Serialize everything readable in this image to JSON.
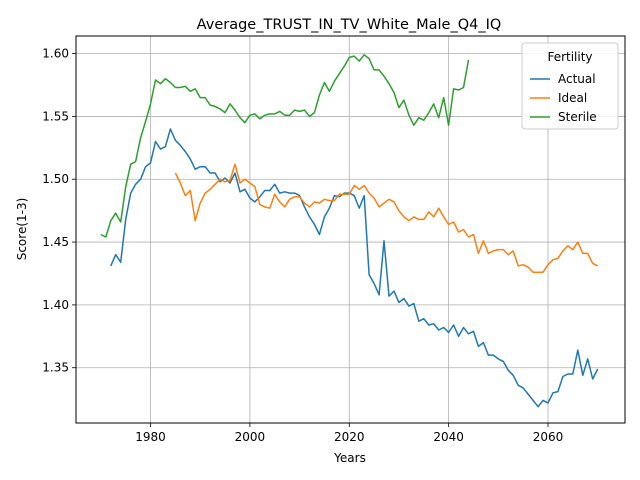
{
  "chart_data": {
    "type": "line",
    "title": "Average_TRUST_IN_TV_White_Male_Q4_IQ",
    "xlabel": "Years",
    "ylabel": "Score(1-3)",
    "xlim": [
      1965.0,
      2075.5
    ],
    "ylim": [
      1.306,
      1.614
    ],
    "xticks": [
      1980,
      2000,
      2020,
      2040,
      2060
    ],
    "xtick_labels": [
      "1980",
      "2000",
      "2020",
      "2040",
      "2060"
    ],
    "yticks": [
      1.35,
      1.4,
      1.45,
      1.5,
      1.55,
      1.6
    ],
    "ytick_labels": [
      "1.35",
      "1.40",
      "1.45",
      "1.50",
      "1.55",
      "1.60"
    ],
    "grid": true,
    "legend": {
      "title": "Fertility",
      "position": "top-right"
    },
    "series": [
      {
        "name": "Actual",
        "color": "#1f77b4",
        "x": [
          1972,
          1973,
          1974,
          1975,
          1976,
          1977,
          1978,
          1979,
          1980,
          1981,
          1982,
          1983,
          1984,
          1985,
          1986,
          1987,
          1988,
          1989,
          1990,
          1991,
          1992,
          1993,
          1994,
          1995,
          1996,
          1997,
          1998,
          1999,
          2000,
          2001,
          2002,
          2003,
          2004,
          2005,
          2006,
          2007,
          2008,
          2009,
          2010,
          2011,
          2012,
          2013,
          2014,
          2015,
          2016,
          2017,
          2018,
          2019,
          2020,
          2021,
          2022,
          2023,
          2024,
          2025,
          2026,
          2027,
          2028,
          2029,
          2030,
          2031,
          2032,
          2033,
          2034,
          2035,
          2036,
          2037,
          2038,
          2039,
          2040,
          2041,
          2042,
          2043,
          2044,
          2045,
          2046,
          2047,
          2048,
          2049,
          2050,
          2051,
          2052,
          2053,
          2054,
          2055,
          2056,
          2057,
          2058,
          2059,
          2060,
          2061,
          2062,
          2063,
          2064,
          2065,
          2066,
          2067,
          2068,
          2069,
          2070
        ],
        "values": [
          1.431,
          1.44,
          1.434,
          1.468,
          1.489,
          1.496,
          1.5,
          1.51,
          1.513,
          1.53,
          1.524,
          1.526,
          1.54,
          1.531,
          1.527,
          1.522,
          1.516,
          1.508,
          1.51,
          1.51,
          1.505,
          1.505,
          1.498,
          1.501,
          1.497,
          1.505,
          1.49,
          1.492,
          1.485,
          1.482,
          1.486,
          1.491,
          1.491,
          1.496,
          1.489,
          1.49,
          1.489,
          1.489,
          1.487,
          1.478,
          1.47,
          1.464,
          1.456,
          1.47,
          1.477,
          1.487,
          1.486,
          1.489,
          1.489,
          1.487,
          1.477,
          1.487,
          1.424,
          1.417,
          1.408,
          1.451,
          1.407,
          1.411,
          1.402,
          1.405,
          1.399,
          1.401,
          1.387,
          1.389,
          1.384,
          1.385,
          1.38,
          1.382,
          1.378,
          1.384,
          1.375,
          1.382,
          1.377,
          1.379,
          1.367,
          1.37,
          1.36,
          1.36,
          1.357,
          1.355,
          1.348,
          1.344,
          1.336,
          1.334,
          1.329,
          1.324,
          1.319,
          1.324,
          1.322,
          1.33,
          1.331,
          1.343,
          1.345,
          1.345,
          1.364,
          1.344,
          1.357,
          1.341,
          1.349
        ]
      },
      {
        "name": "Ideal",
        "color": "#ff7f0e",
        "x": [
          1985,
          1986,
          1987,
          1988,
          1989,
          1990,
          1991,
          1992,
          1993,
          1994,
          1995,
          1996,
          1997,
          1998,
          1999,
          2000,
          2001,
          2002,
          2003,
          2004,
          2005,
          2006,
          2007,
          2008,
          2009,
          2010,
          2011,
          2012,
          2013,
          2014,
          2015,
          2016,
          2017,
          2018,
          2019,
          2020,
          2021,
          2022,
          2023,
          2024,
          2025,
          2026,
          2027,
          2028,
          2029,
          2030,
          2031,
          2032,
          2033,
          2034,
          2035,
          2036,
          2037,
          2038,
          2039,
          2040,
          2041,
          2042,
          2043,
          2044,
          2045,
          2046,
          2047,
          2048,
          2049,
          2050,
          2051,
          2052,
          2053,
          2054,
          2055,
          2056,
          2057,
          2058,
          2059,
          2060,
          2061,
          2062,
          2063,
          2064,
          2065,
          2066,
          2067,
          2068,
          2069,
          2070
        ],
        "values": [
          1.505,
          1.497,
          1.487,
          1.491,
          1.467,
          1.481,
          1.489,
          1.492,
          1.496,
          1.5,
          1.498,
          1.499,
          1.512,
          1.497,
          1.5,
          1.497,
          1.494,
          1.48,
          1.478,
          1.477,
          1.488,
          1.482,
          1.478,
          1.484,
          1.486,
          1.486,
          1.481,
          1.478,
          1.482,
          1.481,
          1.484,
          1.483,
          1.483,
          1.488,
          1.488,
          1.488,
          1.495,
          1.492,
          1.495,
          1.489,
          1.485,
          1.478,
          1.481,
          1.484,
          1.482,
          1.475,
          1.47,
          1.467,
          1.47,
          1.468,
          1.468,
          1.474,
          1.47,
          1.477,
          1.47,
          1.464,
          1.466,
          1.458,
          1.46,
          1.454,
          1.456,
          1.441,
          1.451,
          1.441,
          1.443,
          1.444,
          1.444,
          1.44,
          1.443,
          1.431,
          1.432,
          1.43,
          1.426,
          1.426,
          1.426,
          1.432,
          1.436,
          1.437,
          1.443,
          1.447,
          1.444,
          1.45,
          1.441,
          1.441,
          1.433,
          1.431
        ]
      },
      {
        "name": "Sterile",
        "color": "#2ca02c",
        "x": [
          1970,
          1971,
          1972,
          1973,
          1974,
          1975,
          1976,
          1977,
          1978,
          1979,
          1980,
          1981,
          1982,
          1983,
          1984,
          1985,
          1986,
          1987,
          1988,
          1989,
          1990,
          1991,
          1992,
          1993,
          1994,
          1995,
          1996,
          1997,
          1998,
          1999,
          2000,
          2001,
          2002,
          2003,
          2004,
          2005,
          2006,
          2007,
          2008,
          2009,
          2010,
          2011,
          2012,
          2013,
          2014,
          2015,
          2016,
          2017,
          2018,
          2019,
          2020,
          2021,
          2022,
          2023,
          2024,
          2025,
          2026,
          2027,
          2028,
          2029,
          2030,
          2031,
          2032,
          2033,
          2034,
          2035,
          2036,
          2037,
          2038,
          2039,
          2040,
          2041,
          2042,
          2043,
          2044
        ],
        "values": [
          1.456,
          1.454,
          1.467,
          1.473,
          1.466,
          1.494,
          1.512,
          1.514,
          1.533,
          1.546,
          1.56,
          1.579,
          1.576,
          1.58,
          1.577,
          1.573,
          1.573,
          1.574,
          1.57,
          1.572,
          1.565,
          1.565,
          1.559,
          1.558,
          1.556,
          1.553,
          1.56,
          1.555,
          1.549,
          1.545,
          1.551,
          1.552,
          1.548,
          1.551,
          1.552,
          1.552,
          1.554,
          1.551,
          1.551,
          1.555,
          1.554,
          1.555,
          1.55,
          1.553,
          1.567,
          1.577,
          1.57,
          1.578,
          1.584,
          1.59,
          1.597,
          1.598,
          1.594,
          1.599,
          1.596,
          1.587,
          1.587,
          1.582,
          1.576,
          1.569,
          1.557,
          1.563,
          1.551,
          1.543,
          1.549,
          1.547,
          1.553,
          1.56,
          1.549,
          1.565,
          1.543,
          1.572,
          1.571,
          1.573,
          1.595
        ]
      }
    ]
  }
}
